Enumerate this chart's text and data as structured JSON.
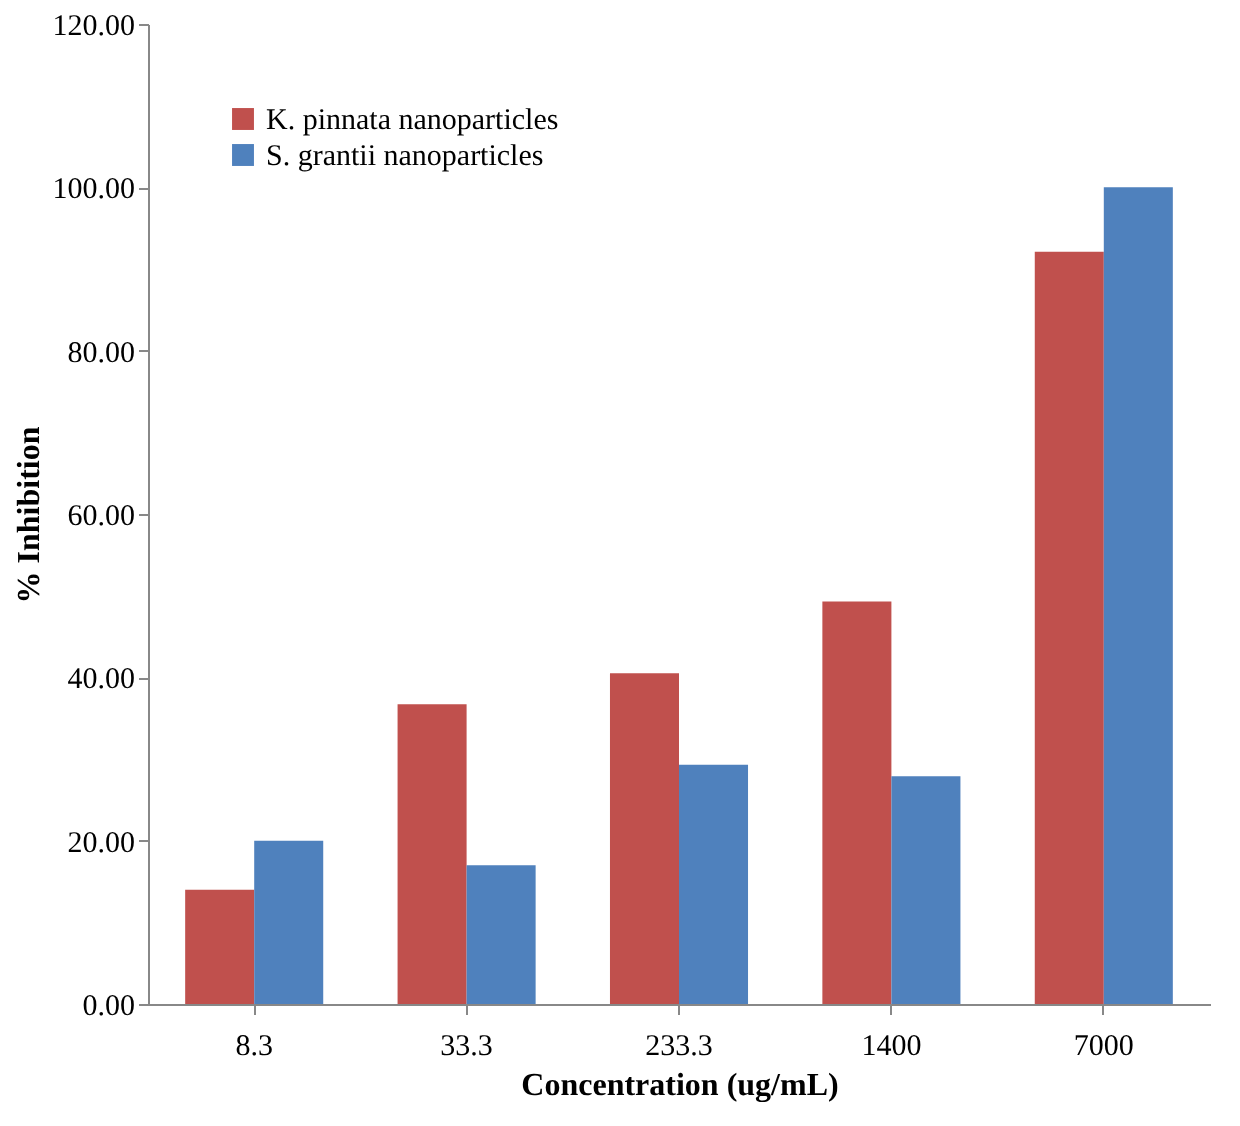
{
  "chart_data": {
    "type": "bar",
    "xlabel": "Concentration (ug/mL)",
    "ylabel": "% Inhibition",
    "categories": [
      "8.3",
      "33.3",
      "233.3",
      "1400",
      "7000"
    ],
    "series": [
      {
        "name": "K. pinnata nanoparticles",
        "color": "#c0504d",
        "values": [
          14.0,
          36.7,
          40.5,
          49.3,
          92.1
        ]
      },
      {
        "name": "S. grantii nanoparticles",
        "color": "#4f81bd",
        "values": [
          20.0,
          17.0,
          29.3,
          27.9,
          100.0
        ]
      }
    ],
    "ylim": [
      0,
      120
    ],
    "yticks": [
      {
        "value": 0,
        "label": "0.00"
      },
      {
        "value": 20,
        "label": "20.00"
      },
      {
        "value": 40,
        "label": "40.00"
      },
      {
        "value": 60,
        "label": "60.00"
      },
      {
        "value": 80,
        "label": "80.00"
      },
      {
        "value": 100,
        "label": "100.00"
      },
      {
        "value": 120,
        "label": "120.00"
      }
    ],
    "grid": false,
    "legend": "top left"
  }
}
